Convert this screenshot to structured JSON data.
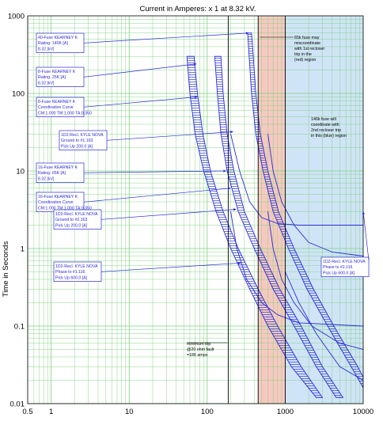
{
  "chart_data": {
    "type": "line",
    "title": "Current in Amperes: x 1 at 8.32 kV.",
    "ylabel": "Time in Seconds",
    "xlabel": "",
    "x_scale": "log",
    "y_scale": "log",
    "xlim": [
      0.5,
      10000
    ],
    "ylim": [
      0.01,
      1000
    ],
    "x_ticks": [
      "0.5",
      "1",
      "10",
      "100",
      "1000",
      "10000"
    ],
    "x_tick_values": [
      0.5,
      1,
      10,
      100,
      1000,
      10000
    ],
    "y_ticks": [
      "0.01",
      "0.1",
      "1",
      "10",
      "100",
      "1000"
    ],
    "y_tick_values": [
      0.01,
      0.1,
      1,
      10,
      100,
      1000
    ],
    "grid": true,
    "colors": {
      "grid": "#7ed27e",
      "curve": "#2a2ad8",
      "hatch": "#3838e0",
      "red_region": "#f6c9c0",
      "blue_region": "#cfe4f6",
      "minimum_trip_line": "#000000"
    },
    "regions": [
      {
        "name": "red",
        "x_from": 450,
        "x_to": 1000,
        "color": "#f6c9c0"
      },
      {
        "name": "blue",
        "x_from": 1000,
        "x_to": 10000,
        "color": "#cfe4f6"
      }
    ],
    "vertical_lines": [
      {
        "x": 186,
        "color": "#000000"
      },
      {
        "x": 450,
        "color": "#000000"
      },
      {
        "x": 1000,
        "color": "#000000"
      }
    ],
    "fuse_bands": [
      {
        "min_curve": [
          [
            55,
            300
          ],
          [
            60,
            100
          ],
          [
            70,
            30
          ],
          [
            90,
            10
          ],
          [
            130,
            3
          ],
          [
            200,
            1
          ],
          [
            350,
            0.3
          ],
          [
            600,
            0.1
          ],
          [
            1200,
            0.03
          ],
          [
            2500,
            0.012
          ]
        ],
        "max_curve": [
          [
            68,
            300
          ],
          [
            75,
            100
          ],
          [
            88,
            30
          ],
          [
            110,
            10
          ],
          [
            160,
            3
          ],
          [
            250,
            1
          ],
          [
            450,
            0.3
          ],
          [
            800,
            0.1
          ],
          [
            1600,
            0.03
          ],
          [
            3000,
            0.012
          ]
        ]
      },
      {
        "min_curve": [
          [
            125,
            300
          ],
          [
            135,
            100
          ],
          [
            150,
            30
          ],
          [
            180,
            10
          ],
          [
            250,
            3
          ],
          [
            400,
            1
          ],
          [
            700,
            0.3
          ],
          [
            1300,
            0.1
          ],
          [
            2500,
            0.03
          ],
          [
            4500,
            0.012
          ]
        ],
        "max_curve": [
          [
            150,
            300
          ],
          [
            160,
            100
          ],
          [
            180,
            30
          ],
          [
            220,
            10
          ],
          [
            300,
            3
          ],
          [
            480,
            1
          ],
          [
            850,
            0.3
          ],
          [
            1600,
            0.1
          ],
          [
            3000,
            0.03
          ],
          [
            5500,
            0.012
          ]
        ]
      },
      {
        "min_curve": [
          [
            330,
            600
          ],
          [
            345,
            300
          ],
          [
            370,
            100
          ],
          [
            420,
            30
          ],
          [
            520,
            10
          ],
          [
            700,
            3
          ],
          [
            1100,
            1
          ],
          [
            1900,
            0.3
          ],
          [
            3500,
            0.1
          ],
          [
            7000,
            0.03
          ],
          [
            10000,
            0.016
          ]
        ],
        "max_curve": [
          [
            370,
            600
          ],
          [
            390,
            300
          ],
          [
            420,
            100
          ],
          [
            480,
            30
          ],
          [
            600,
            10
          ],
          [
            820,
            3
          ],
          [
            1300,
            1
          ],
          [
            2300,
            0.3
          ],
          [
            4200,
            0.1
          ],
          [
            8500,
            0.03
          ],
          [
            10000,
            0.022
          ]
        ]
      }
    ],
    "recloser_curves": [
      {
        "points": [
          [
            200,
            30
          ],
          [
            260,
            10
          ],
          [
            350,
            4
          ],
          [
            500,
            2.5
          ],
          [
            800,
            2.1
          ],
          [
            1500,
            2.0
          ],
          [
            3000,
            2.0
          ],
          [
            10000,
            2.0
          ]
        ]
      },
      {
        "points": [
          [
            200,
            3
          ],
          [
            240,
            1
          ],
          [
            320,
            0.4
          ],
          [
            500,
            0.2
          ],
          [
            800,
            0.14
          ],
          [
            1500,
            0.11
          ],
          [
            10000,
            0.1
          ]
        ]
      },
      {
        "points": [
          [
            600,
            30
          ],
          [
            700,
            10
          ],
          [
            900,
            4
          ],
          [
            1300,
            2
          ],
          [
            2000,
            1.2
          ],
          [
            4000,
            0.9
          ],
          [
            10000,
            0.8
          ]
        ]
      },
      {
        "points": [
          [
            600,
            3
          ],
          [
            700,
            1
          ],
          [
            900,
            0.4
          ],
          [
            1300,
            0.2
          ],
          [
            2200,
            0.1
          ],
          [
            5000,
            0.06
          ],
          [
            10000,
            0.05
          ]
        ]
      },
      {
        "points": [
          [
            1000,
            0.5
          ],
          [
            1500,
            0.2
          ],
          [
            2500,
            0.08
          ],
          [
            5000,
            0.03
          ],
          [
            10000,
            0.02
          ]
        ]
      }
    ],
    "annotations": [
      {
        "lines": [
          "40-Fuse KEARNEY K",
          "Rating: 140K [A]",
          "8.32 [kV]"
        ],
        "target": [
          340,
          600
        ]
      },
      {
        "lines": [
          "8-Fuse KEARNEY K",
          "Rating: 25K [A]",
          "8.32 [kV]"
        ],
        "target": [
          73,
          240
        ]
      },
      {
        "lines": [
          "8-Fuse KEARNEY K",
          "Coordination Curve",
          "CM:1.000 TM:1.000 TA:0.350"
        ],
        "target": [
          75,
          90
        ]
      },
      {
        "lines": [
          "1D2-Recl. KYLE NOVA",
          "Ground to #1.163",
          "Pick Up 200.0 [A]"
        ],
        "target": [
          215,
          32
        ]
      },
      {
        "lines": [
          "16-Fuse KEARNEY K",
          "Rating: 65K [A]",
          "8.32 [kV]"
        ],
        "target": [
          175,
          10
        ]
      },
      {
        "lines": [
          "16-Fuse KEARNEY K",
          "Coordination Curve",
          "CM:1.000 TM:1.000 TA:0.350"
        ],
        "target": [
          200,
          6
        ]
      },
      {
        "lines": [
          "1D2-Recl. KYLE NOVA",
          "Ground to #2.163",
          "Pick Up 200.0 [A]"
        ],
        "target": [
          235,
          3.2
        ]
      },
      {
        "lines": [
          "1D2-Recl. KYLE NOVA",
          "Phase to #1.116",
          "Pick Up 600.0 [A]"
        ],
        "target": [
          270,
          0.65
        ]
      },
      {
        "lines": [
          "1D2-Recl. KYLE NOVA",
          "Phase to #2.116",
          "Pick Up 600.0 [A]"
        ],
        "target": [
          10000,
          3
        ]
      }
    ],
    "notes": [
      {
        "lines": [
          "65k fuse may",
          "miscoordinate",
          "with 1st recloser",
          "trip in the",
          "(red) region"
        ]
      },
      {
        "lines": [
          "140k fuse will",
          "coordinate with",
          "2nd recloser trip",
          "in this (blue) region"
        ]
      },
      {
        "lines": [
          "minimum trip",
          "@20 ohm fault",
          "=186 amps"
        ]
      }
    ]
  }
}
